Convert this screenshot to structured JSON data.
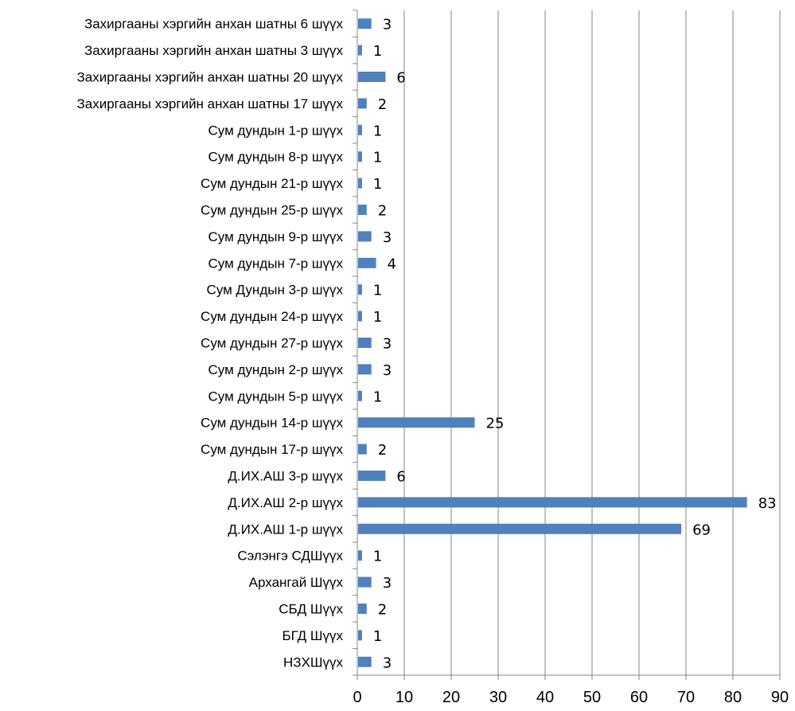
{
  "chart_data": {
    "type": "bar",
    "orientation": "horizontal",
    "title": "",
    "xlabel": "",
    "ylabel": "",
    "categories": [
      "Захиргааны хэргийн анхан шатны 6 шүүх",
      "Захиргааны хэргийн анхан шатны 3 шүүх",
      "Захиргааны хэргийн анхан шатны 20 шүүх",
      "Захиргааны хэргийн анхан шатны 17 шүүх",
      "Сум дундын 1-р шүүх",
      "Сум дундын 8-р шүүх",
      "Сум дундын 21-р шүүх",
      "Сум дундын 25-р шүүх",
      "Сум дундын 9-р шүүх",
      "Сум дундын 7-р шүүх",
      "Сум Дундын 3-р шүүх",
      "Сум дундын 24-р шүүх",
      "Сум дундын 27-р шүүх",
      "Сум дундын 2-р шүүх",
      "Сум дундын 5-р шүүх",
      "Сум дундын 14-р шүүх",
      "Сум дундын 17-р шүүх",
      "Д.ИХ.АШ 3-р шүүх",
      "Д.ИХ.АШ 2-р шүүх",
      "Д.ИХ.АШ 1-р шүүх",
      "Сэлэнгэ СДШүүх",
      "Архангай Шүүх",
      "СБД Шүүх",
      "БГД Шүүх",
      "НЗХШүүх"
    ],
    "values": [
      3,
      1,
      6,
      2,
      1,
      1,
      1,
      2,
      3,
      4,
      1,
      1,
      3,
      3,
      1,
      25,
      2,
      6,
      83,
      69,
      1,
      3,
      2,
      1,
      3
    ],
    "xlim": [
      0,
      90
    ],
    "xticks": [
      0,
      10,
      20,
      30,
      40,
      50,
      60,
      70,
      80,
      90
    ],
    "grid": "vertical",
    "legend": "none",
    "data_labels": true,
    "bar_color": "#4f81bd",
    "grid_color": "#868686",
    "axis_color": "#868686"
  }
}
